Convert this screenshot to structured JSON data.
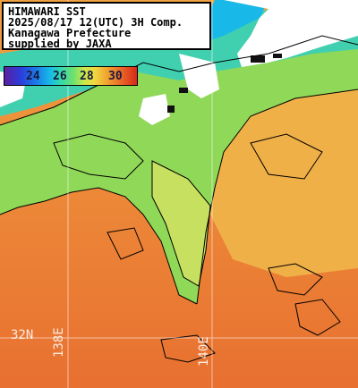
{
  "header": {
    "lines": [
      "HIMAWARI SST",
      "2025/08/17 12(UTC) 3H Comp.",
      "Kanagawa Prefecture",
      "supplied by JAXA"
    ]
  },
  "colorbar": {
    "labels": [
      "24",
      "26",
      "28",
      "30"
    ]
  },
  "grid_labels": {
    "lat": "32N",
    "lon_left": "138E",
    "lon_right": "140E"
  },
  "colors": {
    "land": "#ffffff",
    "no_data": "#111111",
    "water_cool": "#18c8c8",
    "water_mid": "#80d858",
    "water_warm": "#f0a040",
    "water_hot": "#e87028"
  }
}
